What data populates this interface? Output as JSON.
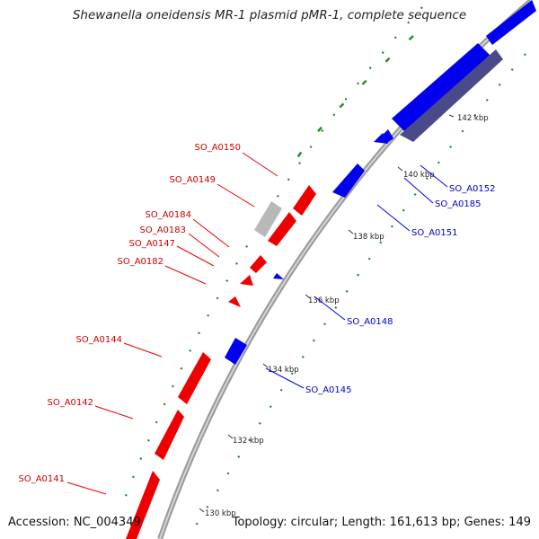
{
  "title": "Shewanella oneidensis MR-1 plasmid pMR-1, complete sequence",
  "footer": {
    "accession": "Accession: NC_004349",
    "summary": "Topology: circular; Length: 161,613 bp; Genes: 149"
  },
  "colors": {
    "backbone": "#9a9a9a",
    "forward_gene": "#ee0000",
    "reverse_gene": "#0000ee",
    "other_gene": "#b8b8b8",
    "other_strand_gene": "#4a4a8a",
    "forward_label": "#cc0000",
    "reverse_label": "#0000cc",
    "gc_marks": "#228822"
  },
  "ruler_labels": [
    "142 kbp",
    "140 kbp",
    "138 kbp",
    "136 kbp",
    "134 kbp",
    "132 kbp",
    "130 kbp"
  ],
  "forward_genes": [
    {
      "label": "SO_A0150"
    },
    {
      "label": "SO_A0149"
    },
    {
      "label": "SO_A0184"
    },
    {
      "label": "SO_A0183"
    },
    {
      "label": "SO_A0147"
    },
    {
      "label": "SO_A0182"
    },
    {
      "label": "SO_A0144"
    },
    {
      "label": "SO_A0142"
    },
    {
      "label": "SO_A0141"
    }
  ],
  "reverse_genes": [
    {
      "label": "SO_A0152"
    },
    {
      "label": "SO_A0185"
    },
    {
      "label": "SO_A0151"
    },
    {
      "label": "SO_A0148"
    },
    {
      "label": "SO_A0145"
    }
  ]
}
